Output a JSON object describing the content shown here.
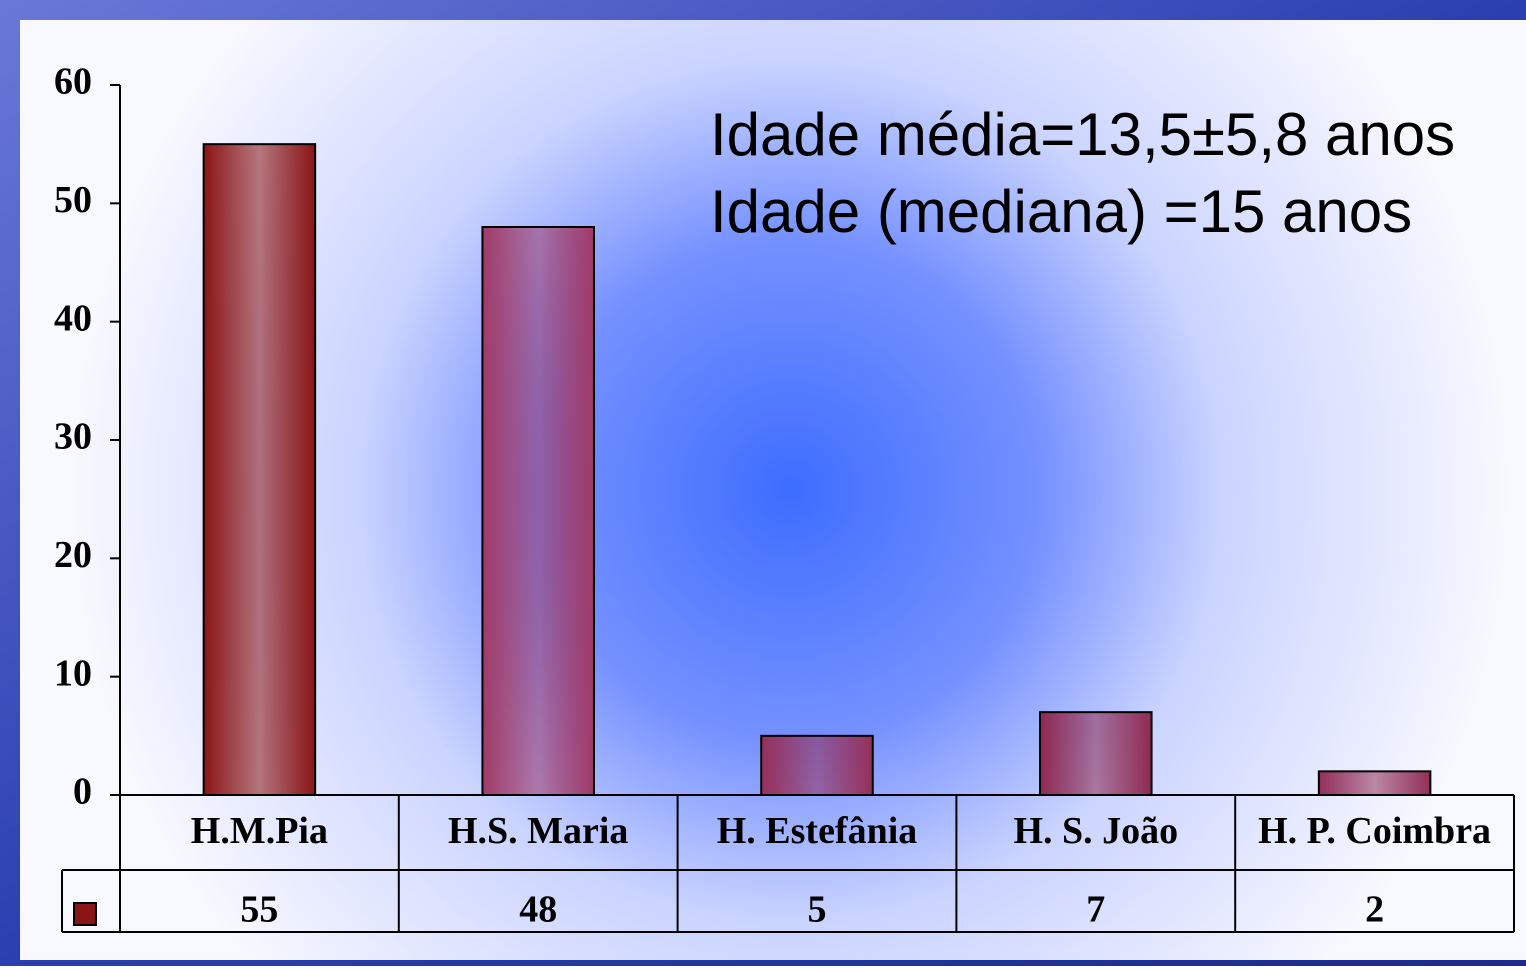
{
  "chart_data": {
    "type": "bar",
    "annotations": [
      "Idade média=13,5±5,8 anos",
      "Idade (mediana) =15 anos"
    ],
    "categories": [
      "H.M.Pia",
      "H.S. Maria",
      "H. Estefânia",
      "H. S. João",
      "H. P. Coimbra"
    ],
    "values": [
      55,
      48,
      5,
      7,
      2
    ],
    "colors": [
      "#8a1515",
      "#a03a68",
      "#962f5a",
      "#8e2a52",
      "#92305a"
    ],
    "ylim": [
      0,
      60
    ],
    "yticks": [
      0,
      10,
      20,
      30,
      40,
      50,
      60
    ],
    "grid": false,
    "data_table": true
  }
}
